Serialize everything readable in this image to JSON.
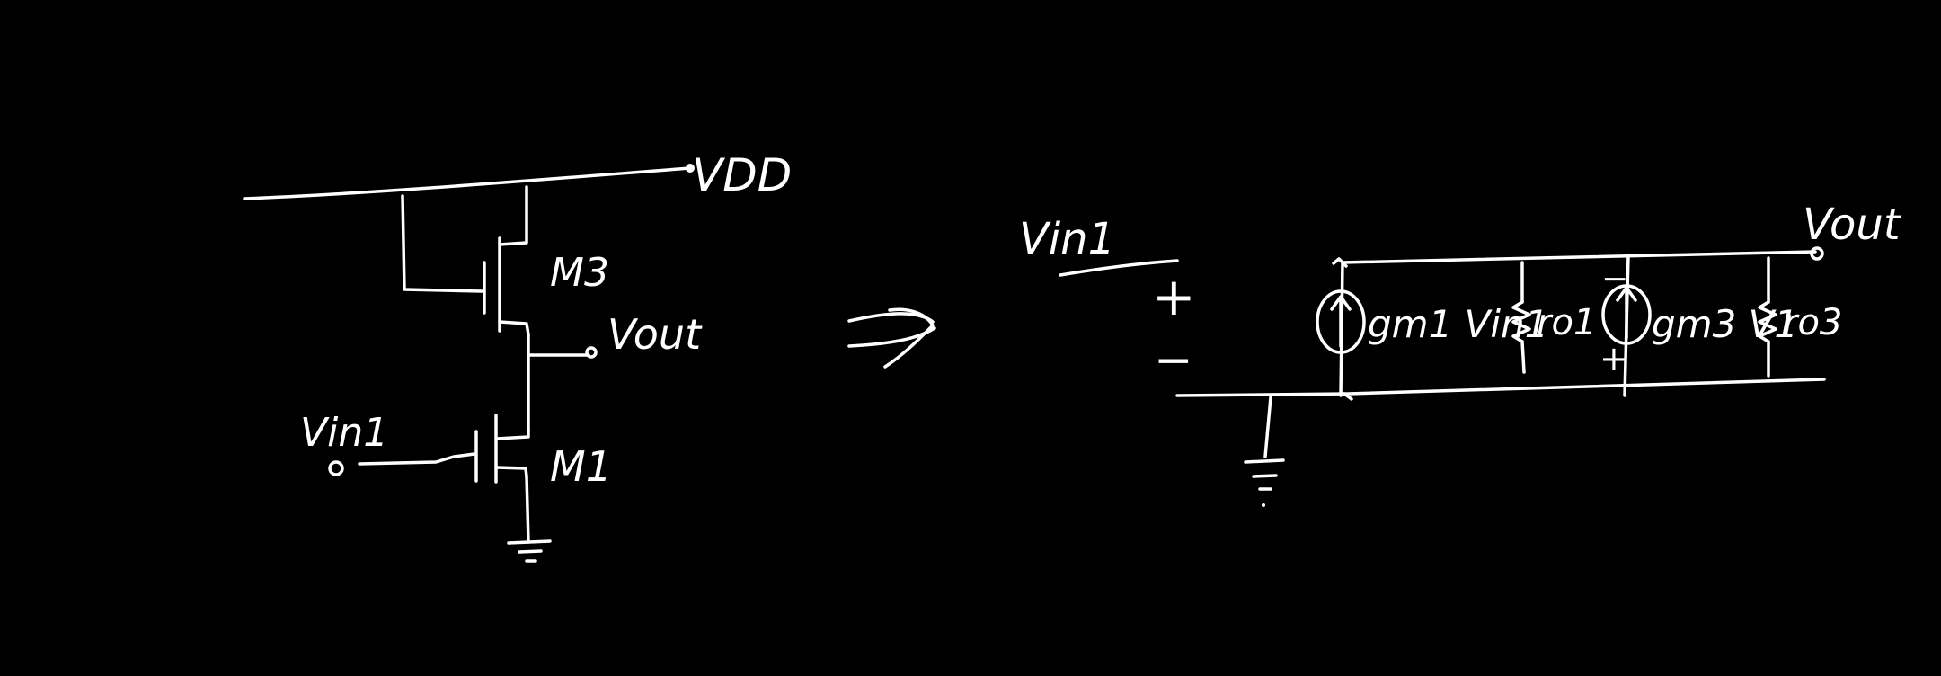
{
  "colors": {
    "background": "#000000",
    "ink": "#ffffff"
  },
  "schematic": {
    "vdd_label": "VDD",
    "m3_label": "M3",
    "m1_label": "M1",
    "vout_label": "Vout",
    "vin_label": "Vin1"
  },
  "arrow": {
    "glyph": "⇒"
  },
  "small_signal": {
    "vin_label": "Vin1",
    "plus_sign": "+",
    "minus_sign": "−",
    "vout_label": "Vout",
    "source1_label": "gm1 Vin1",
    "ro1_label": "ro1",
    "source2_label": "gm3 V1",
    "source2_minus": "−",
    "source2_plus": "+",
    "ro3_label": "ro3"
  }
}
